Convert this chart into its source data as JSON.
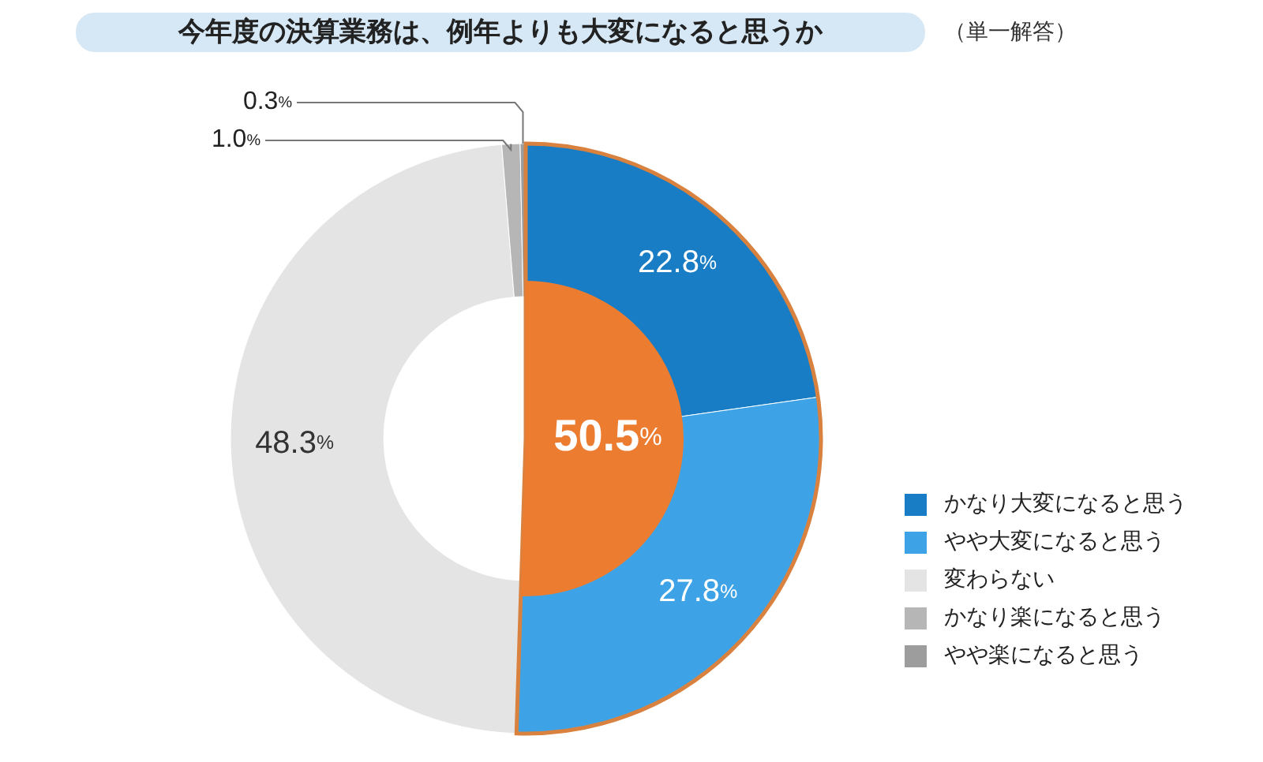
{
  "chart_data": {
    "type": "donut",
    "title": "今年度の決算業務は、例年よりも大変になると思うか",
    "subtitle": "（単一解答）",
    "categories": [
      "かなり大変になると思う",
      "やや大変になると思う",
      "変わらない",
      "かなり楽になると思う",
      "やや楽になると思う"
    ],
    "values": [
      22.8,
      27.8,
      48.3,
      1.0,
      0.3
    ],
    "colors": [
      "#187dc4",
      "#3ea3e6",
      "#e4e4e4",
      "#b6b6b6",
      "#9d9d9d"
    ],
    "value_labels": [
      "22.8%",
      "27.8%",
      "48.3%",
      "1.0%",
      "0.3%"
    ],
    "annotations": [
      "50.5%"
    ],
    "legend": "bottom right"
  }
}
